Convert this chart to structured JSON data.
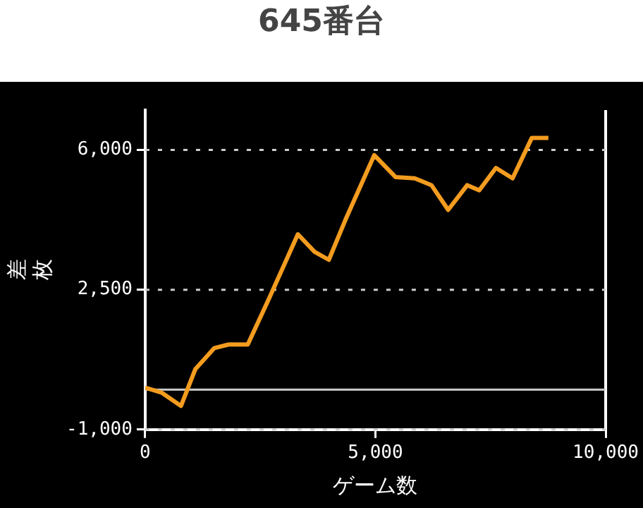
{
  "chart_data": {
    "type": "line",
    "title": "645番台",
    "xlabel": "ゲーム数",
    "ylabel": "差枚",
    "x": [
      0,
      363,
      777,
      1088,
      1502,
      1813,
      2228,
      2694,
      3316,
      3678,
      3989,
      4352,
      4974,
      5440,
      5855,
      6217,
      6580,
      6994,
      7254,
      7617,
      7979,
      8394,
      8756
    ],
    "series": [
      {
        "color": "#f39c1f",
        "values": [
          50,
          -80,
          -410,
          510,
          1040,
          1130,
          1130,
          2290,
          3890,
          3450,
          3250,
          4260,
          5870,
          5320,
          5290,
          5120,
          4500,
          5120,
          4990,
          5550,
          5290,
          6300,
          6300
        ]
      }
    ],
    "xlim": [
      0,
      10000
    ],
    "xticks": [
      0,
      {
        "value": 5000,
        "label": "5,000"
      },
      {
        "value": 10000,
        "label": "10,000"
      }
    ],
    "ylim": [
      -1000,
      7000
    ],
    "yticks": [
      {
        "value": -1000,
        "label": "-1,000"
      },
      {
        "value": 2500,
        "label": "2,500"
      },
      {
        "value": 6000,
        "label": "6,000"
      }
    ],
    "grid": "y",
    "marker": "none",
    "line_style": "solid",
    "legend": false,
    "ref_lines": [
      {
        "axis": "y",
        "value": 0,
        "label": null,
        "color": "#cccccc",
        "line_style": "solid"
      }
    ]
  }
}
